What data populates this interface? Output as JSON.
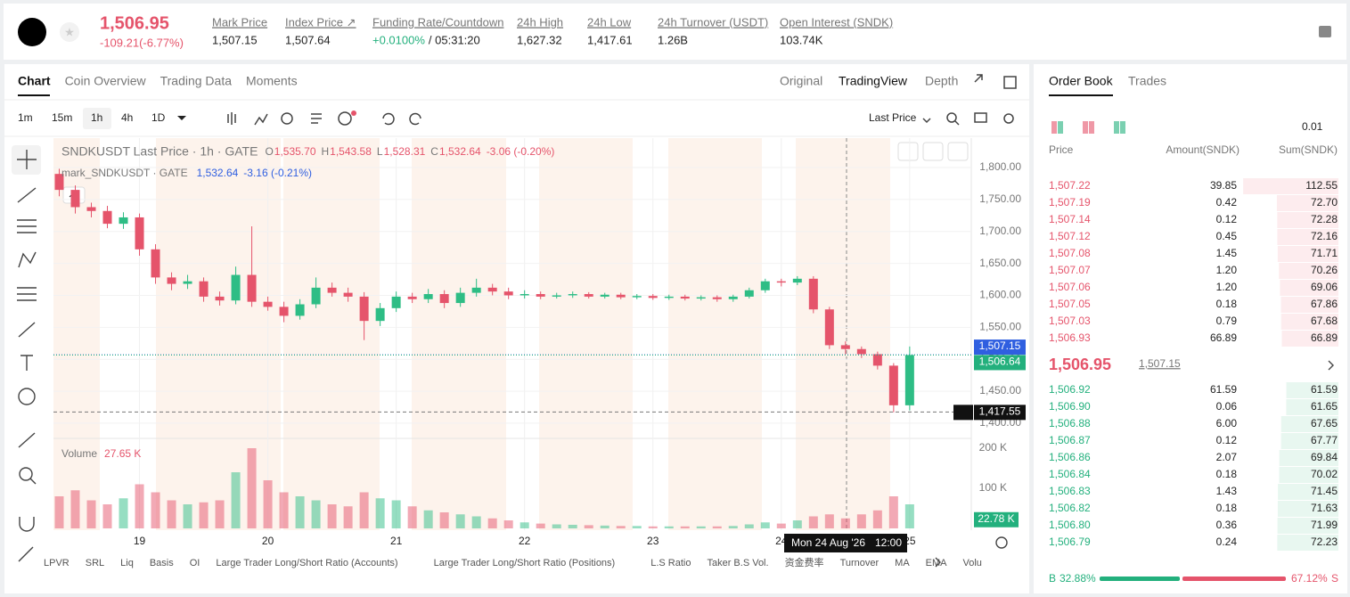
{
  "header": {
    "price": "1,506.95",
    "change": "-109.21(-6.77%)",
    "stats": [
      {
        "label": "Mark Price",
        "value": "1,507.15"
      },
      {
        "label": "Index Price ↗",
        "value": "1,507.64"
      },
      {
        "label": "Funding Rate/Countdown",
        "value": "+0.0100%",
        "extra": "/ 05:31:20"
      },
      {
        "label": "24h High",
        "value": "1,627.32"
      },
      {
        "label": "24h Low",
        "value": "1,417.61"
      },
      {
        "label": "24h Turnover (USDT)",
        "value": "1.26B"
      },
      {
        "label": "Open Interest (SNDK)",
        "value": "103.74K"
      }
    ]
  },
  "tabs": {
    "left": [
      "Chart",
      "Coin Overview",
      "Trading Data",
      "Moments"
    ],
    "right": [
      "Original",
      "TradingView",
      "Depth"
    ]
  },
  "toolbar": {
    "intervals": [
      "1m",
      "15m",
      "1h",
      "4h",
      "1D"
    ],
    "price_type": "Last Price"
  },
  "chart_data": {
    "type": "candlestick",
    "title": "SNDKUSDT Last Price · 1h · GATE",
    "ohlc_labels": [
      {
        "key": "O",
        "value": "1,535.70"
      },
      {
        "key": "H",
        "value": "1,543.58"
      },
      {
        "key": "L",
        "value": "1,528.31"
      },
      {
        "key": "C",
        "value": "1,532.64"
      }
    ],
    "change": "-3.06 (-0.20%)",
    "mark_title": "mark_SNDKUSDT · GATE",
    "mark_value": "1,532.64",
    "mark_change": "-3.16 (-0.21%)",
    "volume_title": "Volume",
    "volume_value": "27.65 K",
    "x": [
      18.375,
      18.5,
      18.625,
      18.75,
      18.875,
      19.0,
      19.125,
      19.25,
      19.375,
      19.5,
      19.625,
      19.75,
      19.875,
      20.0,
      20.125,
      20.25,
      20.375,
      20.5,
      20.625,
      20.75,
      20.875,
      21.0,
      21.125,
      21.25,
      21.375,
      21.5,
      21.625,
      21.75,
      21.875,
      22.0,
      22.125,
      22.25,
      22.375,
      22.5,
      22.625,
      22.75,
      22.875,
      23.0,
      23.125,
      23.25,
      23.375,
      23.5,
      23.625,
      23.75,
      23.875,
      24.0,
      24.125,
      24.25,
      24.375,
      24.5,
      24.625,
      24.75,
      24.875,
      25.0
    ],
    "open": [
      1790,
      1765,
      1738,
      1732,
      1712,
      1722,
      1672,
      1628,
      1618,
      1622,
      1598,
      1592,
      1632,
      1590,
      1582,
      1568,
      1586,
      1612,
      1604,
      1598,
      1560,
      1580,
      1598,
      1594,
      1602,
      1588,
      1604,
      1612,
      1606,
      1600,
      1602,
      1598,
      1600,
      1602,
      1598,
      1601,
      1597,
      1599,
      1596,
      1598,
      1595,
      1597,
      1594,
      1598,
      1608,
      1622,
      1620,
      1626,
      1578,
      1522,
      1516,
      1508,
      1490,
      1428
    ],
    "high": [
      1798,
      1772,
      1745,
      1740,
      1730,
      1728,
      1680,
      1636,
      1632,
      1628,
      1606,
      1645,
      1708,
      1598,
      1590,
      1594,
      1628,
      1620,
      1612,
      1605,
      1588,
      1606,
      1604,
      1610,
      1608,
      1612,
      1626,
      1618,
      1612,
      1608,
      1606,
      1604,
      1606,
      1605,
      1604,
      1604,
      1602,
      1602,
      1601,
      1601,
      1600,
      1600,
      1601,
      1612,
      1626,
      1626,
      1630,
      1630,
      1582,
      1528,
      1520,
      1512,
      1494,
      1520
    ],
    "low": [
      1755,
      1728,
      1722,
      1705,
      1704,
      1662,
      1618,
      1608,
      1610,
      1590,
      1584,
      1586,
      1582,
      1576,
      1558,
      1562,
      1580,
      1598,
      1590,
      1530,
      1552,
      1574,
      1588,
      1588,
      1580,
      1582,
      1598,
      1600,
      1594,
      1595,
      1594,
      1595,
      1596,
      1595,
      1595,
      1594,
      1594,
      1593,
      1593,
      1592,
      1592,
      1590,
      1590,
      1595,
      1604,
      1614,
      1616,
      1572,
      1516,
      1508,
      1502,
      1484,
      1417,
      1420
    ],
    "close": [
      1765,
      1738,
      1732,
      1712,
      1722,
      1672,
      1628,
      1618,
      1622,
      1598,
      1592,
      1632,
      1590,
      1582,
      1568,
      1586,
      1612,
      1604,
      1598,
      1560,
      1580,
      1598,
      1594,
      1602,
      1588,
      1604,
      1612,
      1606,
      1600,
      1602,
      1598,
      1600,
      1602,
      1598,
      1601,
      1597,
      1599,
      1596,
      1598,
      1595,
      1597,
      1594,
      1598,
      1608,
      1622,
      1620,
      1626,
      1578,
      1522,
      1516,
      1508,
      1490,
      1428,
      1506.64
    ],
    "volume": [
      80000,
      95000,
      70000,
      60000,
      75000,
      110000,
      90000,
      70000,
      60000,
      65000,
      70000,
      140000,
      200000,
      120000,
      90000,
      80000,
      70000,
      60000,
      55000,
      90000,
      75000,
      70000,
      55000,
      45000,
      40000,
      35000,
      30000,
      25000,
      20000,
      15000,
      12000,
      10000,
      9000,
      8000,
      7000,
      6000,
      6000,
      5000,
      5000,
      5000,
      5000,
      5000,
      6000,
      10000,
      15000,
      12000,
      20000,
      30000,
      35000,
      25000,
      35000,
      45000,
      80000,
      60000
    ],
    "xlim": [
      18.33,
      25.48
    ],
    "xticks": [
      19,
      20,
      21,
      22,
      23,
      24,
      25
    ],
    "ylim": [
      1379,
      1846
    ],
    "yticks": [
      {
        "value": 1400,
        "label": "1,400.00"
      },
      {
        "value": 1450,
        "label": "1,450.00"
      },
      {
        "value": 1500,
        "label": "1,500.00"
      },
      {
        "value": 1550,
        "label": "1,550.00"
      },
      {
        "value": 1600,
        "label": "1,600.00"
      },
      {
        "value": 1650,
        "label": "1,650.00"
      },
      {
        "value": 1700,
        "label": "1,700.00"
      },
      {
        "value": 1750,
        "label": "1,750.00"
      },
      {
        "value": 1800,
        "label": "1,800.00"
      }
    ],
    "volume_lim": [
      0,
      220000
    ],
    "volume_ticks": [
      {
        "value": 100000,
        "label": "100 K"
      },
      {
        "value": 200000,
        "label": "200 K"
      }
    ],
    "price_lines": [
      {
        "value": 1507.15,
        "label": "1,507.15",
        "color": "#2f5fe0"
      },
      {
        "value": 1506.64,
        "label": "1,506.64",
        "color": "#23b07d"
      },
      {
        "value": 1417.55,
        "label": "1,417.55",
        "color": "#111111"
      }
    ],
    "volume_marker": {
      "value": 22780,
      "label": "22.78 K",
      "color": "#23b07d"
    },
    "crosshair_date": "Mon 24 Aug '26",
    "crosshair_time": "12:00",
    "up_color": "#2ebd85",
    "down_color": "#e5546b",
    "grid": true
  },
  "indicators": [
    "LPVR",
    "SRL",
    "Liq",
    "Basis",
    "OI",
    "Large Trader Long/Short Ratio (Accounts)",
    "Large Trader Long/Short Ratio (Positions)",
    "L.S Ratio",
    "Taker B.S Vol.",
    "资金费率",
    "Turnover",
    "MA",
    "EMA",
    "Volu"
  ],
  "order_book": {
    "tabs": [
      "Order Book",
      "Trades"
    ],
    "precision": "0.01",
    "columns": [
      "Price",
      "Amount(SNDK)",
      "Sum(SNDK)"
    ],
    "asks": [
      [
        "1,507.22",
        "39.85",
        "112.55"
      ],
      [
        "1,507.19",
        "0.42",
        "72.70"
      ],
      [
        "1,507.14",
        "0.12",
        "72.28"
      ],
      [
        "1,507.12",
        "0.45",
        "72.16"
      ],
      [
        "1,507.08",
        "1.45",
        "71.71"
      ],
      [
        "1,507.07",
        "1.20",
        "70.26"
      ],
      [
        "1,507.06",
        "1.20",
        "69.06"
      ],
      [
        "1,507.05",
        "0.18",
        "67.86"
      ],
      [
        "1,507.03",
        "0.79",
        "67.68"
      ],
      [
        "1,506.93",
        "66.89",
        "66.89"
      ]
    ],
    "mid_price": "1,506.95",
    "mid_mark": "1,507.15",
    "bids": [
      [
        "1,506.92",
        "61.59",
        "61.59"
      ],
      [
        "1,506.90",
        "0.06",
        "61.65"
      ],
      [
        "1,506.88",
        "6.00",
        "67.65"
      ],
      [
        "1,506.87",
        "0.12",
        "67.77"
      ],
      [
        "1,506.86",
        "2.07",
        "69.84"
      ],
      [
        "1,506.84",
        "0.18",
        "70.02"
      ],
      [
        "1,506.83",
        "1.43",
        "71.45"
      ],
      [
        "1,506.82",
        "0.18",
        "71.63"
      ],
      [
        "1,506.80",
        "0.36",
        "71.99"
      ],
      [
        "1,506.79",
        "0.24",
        "72.23"
      ]
    ],
    "buy_label": "B",
    "buy_ratio": "32.88%",
    "sell_ratio": "67.12%",
    "sell_label": "S"
  }
}
